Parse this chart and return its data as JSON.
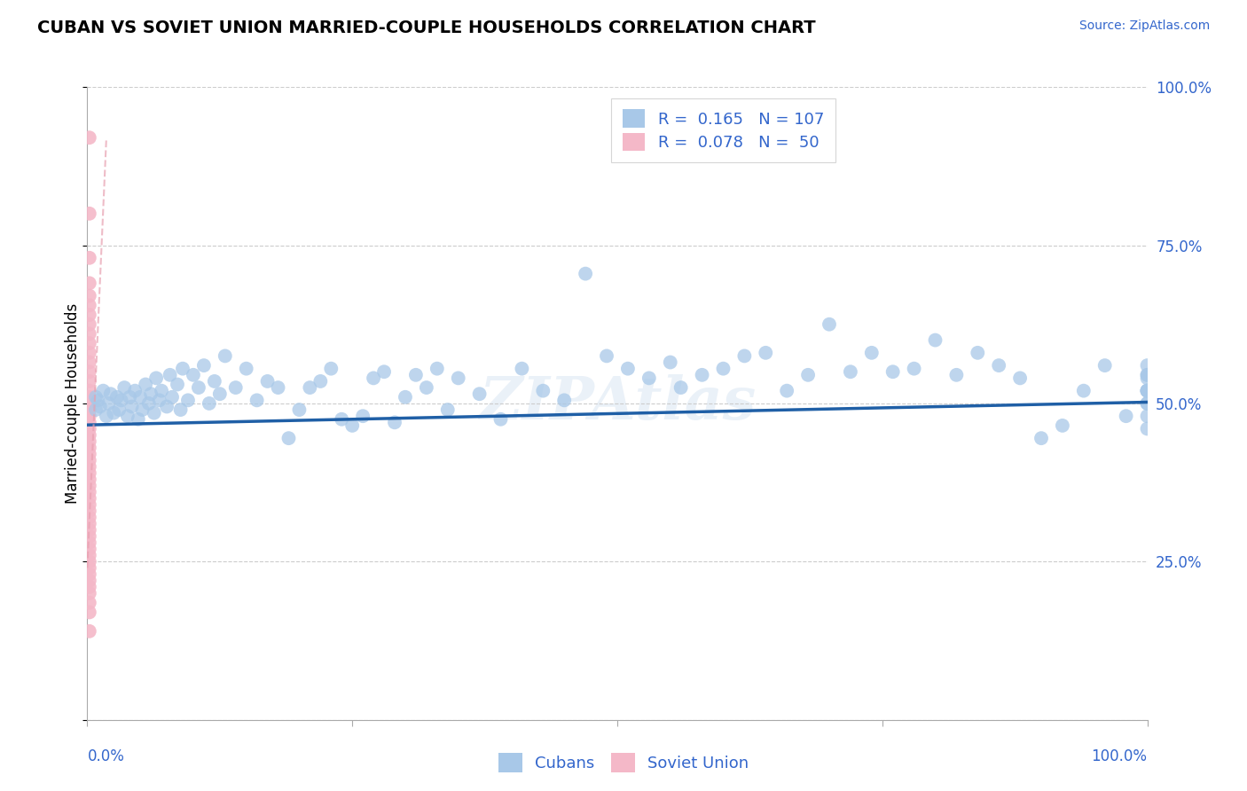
{
  "title": "CUBAN VS SOVIET UNION MARRIED-COUPLE HOUSEHOLDS CORRELATION CHART",
  "source": "Source: ZipAtlas.com",
  "ylabel": "Married-couple Households",
  "legend_cubans_R": "0.165",
  "legend_cubans_N": "107",
  "legend_soviet_R": "0.078",
  "legend_soviet_N": "50",
  "blue_color": "#a8c8e8",
  "blue_line_color": "#1f5fa6",
  "pink_color": "#f4b8c8",
  "pink_line_color": "#e8a0b0",
  "label_color": "#3366cc",
  "grid_color": "#cccccc",
  "background_color": "#ffffff",
  "xlim": [
    0.0,
    1.0
  ],
  "ylim": [
    0.0,
    1.0
  ],
  "cubans_x": [
    0.008,
    0.008,
    0.01,
    0.012,
    0.015,
    0.018,
    0.02,
    0.022,
    0.025,
    0.028,
    0.03,
    0.032,
    0.035,
    0.038,
    0.04,
    0.042,
    0.045,
    0.048,
    0.05,
    0.052,
    0.055,
    0.058,
    0.06,
    0.063,
    0.065,
    0.068,
    0.07,
    0.075,
    0.078,
    0.08,
    0.085,
    0.088,
    0.09,
    0.095,
    0.1,
    0.105,
    0.11,
    0.115,
    0.12,
    0.125,
    0.13,
    0.14,
    0.15,
    0.16,
    0.17,
    0.18,
    0.19,
    0.2,
    0.21,
    0.22,
    0.23,
    0.24,
    0.25,
    0.26,
    0.27,
    0.28,
    0.29,
    0.3,
    0.31,
    0.32,
    0.33,
    0.34,
    0.35,
    0.37,
    0.39,
    0.41,
    0.43,
    0.45,
    0.47,
    0.49,
    0.51,
    0.53,
    0.55,
    0.56,
    0.58,
    0.6,
    0.62,
    0.64,
    0.66,
    0.68,
    0.7,
    0.72,
    0.74,
    0.76,
    0.78,
    0.8,
    0.82,
    0.84,
    0.86,
    0.88,
    0.9,
    0.92,
    0.94,
    0.96,
    0.98,
    1.0,
    1.0,
    1.0,
    1.0,
    1.0,
    1.0,
    1.0,
    1.0,
    1.0,
    1.0,
    1.0,
    1.0
  ],
  "cubans_y": [
    0.49,
    0.51,
    0.505,
    0.495,
    0.52,
    0.48,
    0.5,
    0.515,
    0.485,
    0.51,
    0.49,
    0.505,
    0.525,
    0.48,
    0.51,
    0.495,
    0.52,
    0.475,
    0.51,
    0.49,
    0.53,
    0.5,
    0.515,
    0.485,
    0.54,
    0.505,
    0.52,
    0.495,
    0.545,
    0.51,
    0.53,
    0.49,
    0.555,
    0.505,
    0.545,
    0.525,
    0.56,
    0.5,
    0.535,
    0.515,
    0.575,
    0.525,
    0.555,
    0.505,
    0.535,
    0.525,
    0.445,
    0.49,
    0.525,
    0.535,
    0.555,
    0.475,
    0.465,
    0.48,
    0.54,
    0.55,
    0.47,
    0.51,
    0.545,
    0.525,
    0.555,
    0.49,
    0.54,
    0.515,
    0.475,
    0.555,
    0.52,
    0.505,
    0.705,
    0.575,
    0.555,
    0.54,
    0.565,
    0.525,
    0.545,
    0.555,
    0.575,
    0.58,
    0.52,
    0.545,
    0.625,
    0.55,
    0.58,
    0.55,
    0.555,
    0.6,
    0.545,
    0.58,
    0.56,
    0.54,
    0.445,
    0.465,
    0.52,
    0.56,
    0.48,
    0.545,
    0.52,
    0.5,
    0.52,
    0.545,
    0.56,
    0.52,
    0.5,
    0.54,
    0.48,
    0.46,
    0.52
  ],
  "soviet_x": [
    0.002,
    0.002,
    0.002,
    0.002,
    0.002,
    0.002,
    0.002,
    0.002,
    0.002,
    0.002,
    0.002,
    0.002,
    0.002,
    0.002,
    0.002,
    0.002,
    0.002,
    0.002,
    0.002,
    0.002,
    0.002,
    0.002,
    0.002,
    0.002,
    0.002,
    0.002,
    0.002,
    0.002,
    0.002,
    0.002,
    0.002,
    0.002,
    0.002,
    0.002,
    0.002,
    0.002,
    0.002,
    0.002,
    0.002,
    0.002,
    0.002,
    0.002,
    0.002,
    0.002,
    0.002,
    0.002,
    0.002,
    0.002,
    0.002,
    0.002
  ],
  "soviet_y": [
    0.92,
    0.8,
    0.73,
    0.69,
    0.67,
    0.655,
    0.64,
    0.625,
    0.61,
    0.595,
    0.58,
    0.565,
    0.55,
    0.535,
    0.52,
    0.51,
    0.5,
    0.49,
    0.48,
    0.47,
    0.46,
    0.45,
    0.44,
    0.43,
    0.42,
    0.41,
    0.4,
    0.39,
    0.38,
    0.37,
    0.36,
    0.35,
    0.34,
    0.33,
    0.32,
    0.31,
    0.3,
    0.29,
    0.28,
    0.27,
    0.26,
    0.25,
    0.24,
    0.23,
    0.22,
    0.21,
    0.2,
    0.185,
    0.17,
    0.14
  ],
  "blue_trendline_x": [
    0.0,
    1.0
  ],
  "blue_trendline_y": [
    0.466,
    0.502
  ],
  "pink_trendline_x": [
    0.0,
    0.018
  ],
  "pink_trendline_y": [
    0.24,
    0.92
  ],
  "watermark": "ZIPAtlas",
  "marker_size": 130
}
